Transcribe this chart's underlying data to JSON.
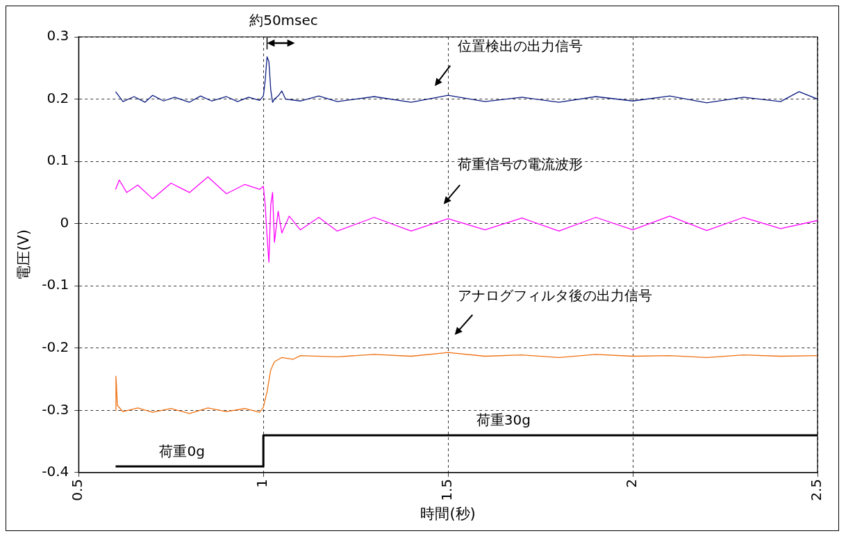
{
  "chart_data": {
    "type": "line",
    "xlabel": "時間(秒)",
    "ylabel": "電圧(V)",
    "xlim": [
      0.5,
      2.5
    ],
    "xticks": [
      0.5,
      1,
      1.5,
      2,
      2.5
    ],
    "ylim": [
      -0.4,
      0.3
    ],
    "yticks": [
      -0.4,
      -0.3,
      -0.2,
      -0.1,
      0,
      0.1,
      0.2,
      0.3
    ],
    "grid": true,
    "legend": false,
    "marker": "none",
    "series": [
      {
        "color": "#0a1a80",
        "x": [
          0.6,
          0.62,
          0.65,
          0.68,
          0.7,
          0.73,
          0.76,
          0.8,
          0.83,
          0.86,
          0.9,
          0.93,
          0.96,
          0.99,
          1.0,
          1.005,
          1.01,
          1.015,
          1.02,
          1.025,
          1.03,
          1.04,
          1.05,
          1.06,
          1.1,
          1.15,
          1.2,
          1.3,
          1.4,
          1.5,
          1.6,
          1.7,
          1.8,
          1.9,
          2.0,
          2.1,
          2.2,
          2.3,
          2.4,
          2.45,
          2.5
        ],
        "values": [
          0.212,
          0.196,
          0.204,
          0.195,
          0.206,
          0.197,
          0.203,
          0.195,
          0.205,
          0.197,
          0.204,
          0.196,
          0.203,
          0.198,
          0.205,
          0.23,
          0.268,
          0.26,
          0.215,
          0.195,
          0.2,
          0.205,
          0.213,
          0.2,
          0.197,
          0.205,
          0.196,
          0.204,
          0.195,
          0.206,
          0.196,
          0.203,
          0.195,
          0.204,
          0.197,
          0.205,
          0.194,
          0.203,
          0.196,
          0.212,
          0.2
        ]
      },
      {
        "color": "#ff00ff",
        "x": [
          0.6,
          0.61,
          0.63,
          0.66,
          0.7,
          0.75,
          0.8,
          0.85,
          0.9,
          0.95,
          0.99,
          1.0,
          1.005,
          1.01,
          1.015,
          1.02,
          1.025,
          1.03,
          1.04,
          1.05,
          1.07,
          1.1,
          1.15,
          1.2,
          1.3,
          1.4,
          1.5,
          1.6,
          1.7,
          1.8,
          1.9,
          2.0,
          2.1,
          2.2,
          2.3,
          2.4,
          2.5
        ],
        "values": [
          0.055,
          0.07,
          0.05,
          0.062,
          0.04,
          0.065,
          0.05,
          0.075,
          0.048,
          0.063,
          0.055,
          0.06,
          0.03,
          -0.02,
          -0.062,
          0.03,
          0.05,
          -0.03,
          0.02,
          -0.015,
          0.012,
          -0.01,
          0.01,
          -0.012,
          0.01,
          -0.012,
          0.008,
          -0.01,
          0.009,
          -0.012,
          0.01,
          -0.01,
          0.012,
          -0.011,
          0.01,
          -0.008,
          0.005
        ]
      },
      {
        "color": "#f07010",
        "x": [
          0.6,
          0.601,
          0.605,
          0.62,
          0.66,
          0.7,
          0.75,
          0.8,
          0.85,
          0.9,
          0.95,
          0.99,
          1.0,
          1.01,
          1.02,
          1.03,
          1.05,
          1.08,
          1.1,
          1.2,
          1.3,
          1.4,
          1.5,
          1.6,
          1.7,
          1.8,
          1.9,
          2.0,
          2.1,
          2.2,
          2.3,
          2.4,
          2.5
        ],
        "values": [
          -0.3,
          -0.245,
          -0.292,
          -0.302,
          -0.296,
          -0.303,
          -0.297,
          -0.305,
          -0.296,
          -0.302,
          -0.297,
          -0.303,
          -0.295,
          -0.27,
          -0.235,
          -0.222,
          -0.215,
          -0.218,
          -0.212,
          -0.214,
          -0.21,
          -0.213,
          -0.207,
          -0.213,
          -0.211,
          -0.215,
          -0.21,
          -0.213,
          -0.212,
          -0.215,
          -0.211,
          -0.213,
          -0.212
        ]
      },
      {
        "type": "step",
        "color": "#000000",
        "x": [
          0.6,
          1.0,
          2.5
        ],
        "values": [
          -0.39,
          -0.34,
          -0.34
        ]
      }
    ],
    "annotations": [
      {
        "text": "約50msec",
        "x": 1.01,
        "y": 0.268
      },
      "位置検出の出力信号",
      "荷重信号の電流波形",
      "アナログフィルタ後の出力信号",
      {
        "text": "荷重0g",
        "x": 0.78,
        "y": -0.39
      },
      {
        "text": "荷重30g",
        "x": 1.65,
        "y": -0.34
      }
    ]
  }
}
